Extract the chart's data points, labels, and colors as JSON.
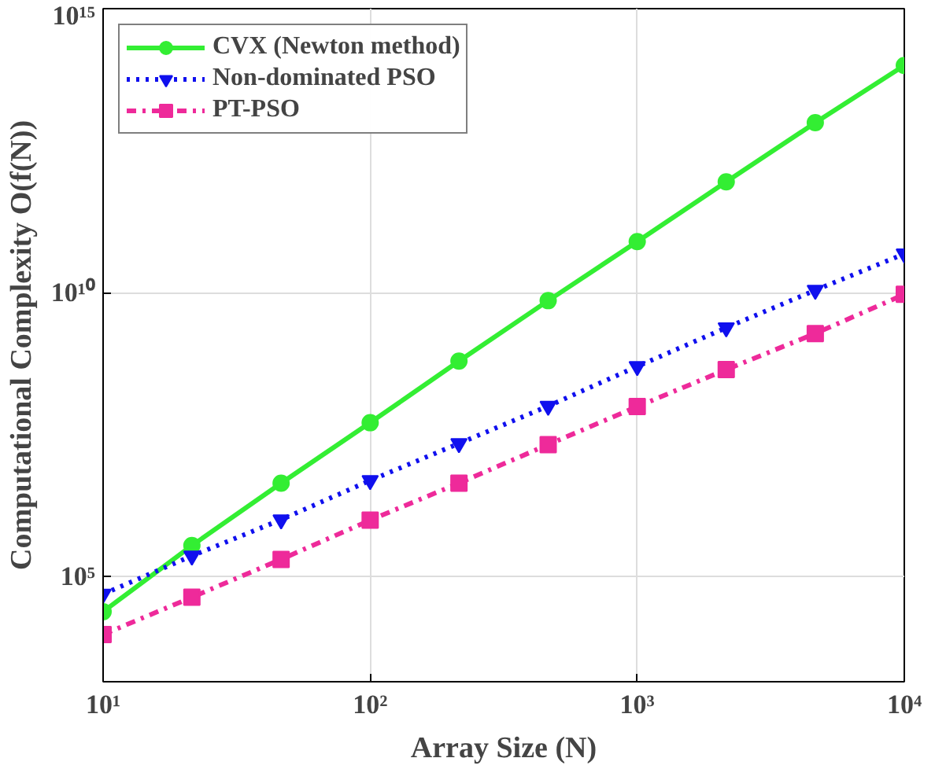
{
  "chart_data": {
    "type": "line",
    "xlabel": "Array Size (N)",
    "ylabel": "Computational Complexity O(f(N))",
    "log": "xy",
    "grid": true,
    "legend": "top left",
    "x": [
      10,
      21.5,
      46.4,
      100,
      215,
      464,
      1000,
      2154,
      4642,
      10000
    ],
    "xlim": [
      10,
      10000
    ],
    "xticks": [
      {
        "value": 10,
        "label": "10¹"
      },
      {
        "value": 100,
        "label": "10²"
      },
      {
        "value": 1000,
        "label": "10³"
      },
      {
        "value": 10000,
        "label": "10⁴"
      }
    ],
    "ylim": [
      1400,
      1000000000000000.0
    ],
    "yticks": [
      {
        "value": 100000.0,
        "label": "10⁵"
      },
      {
        "value": 10000000000.0,
        "label": "10¹⁰"
      },
      {
        "value": 1000000000000000.0,
        "label": "10¹⁵"
      }
    ],
    "series": [
      {
        "name": "CVX (Newton method)",
        "color": "#33ee33",
        "marker": "circle",
        "line_style": "solid",
        "values": [
          24000.0,
          350000.0,
          4400000.0,
          51000000.0,
          620000000.0,
          7200000000.0,
          79000000000.0,
          890000000000.0,
          9800000000000.0,
          100000000000000.0
        ]
      },
      {
        "name": "Non-dominated PSO",
        "color": "#1010ee",
        "marker": "triangle",
        "line_style": "dotted",
        "values": [
          49000.0,
          230000.0,
          1000000.0,
          4900000.0,
          22000000.0,
          100000000.0,
          500000000.0,
          2400000000.0,
          11000000000.0,
          48000000000.0
        ]
      },
      {
        "name": "PT-PSO",
        "color": "#ee2a9a",
        "marker": "square",
        "line_style": "dashdot",
        "values": [
          9500.0,
          43000.0,
          200000.0,
          980000.0,
          4400000.0,
          21000000.0,
          98000000.0,
          440000000.0,
          1900000000.0,
          9300000000.0
        ]
      }
    ]
  }
}
